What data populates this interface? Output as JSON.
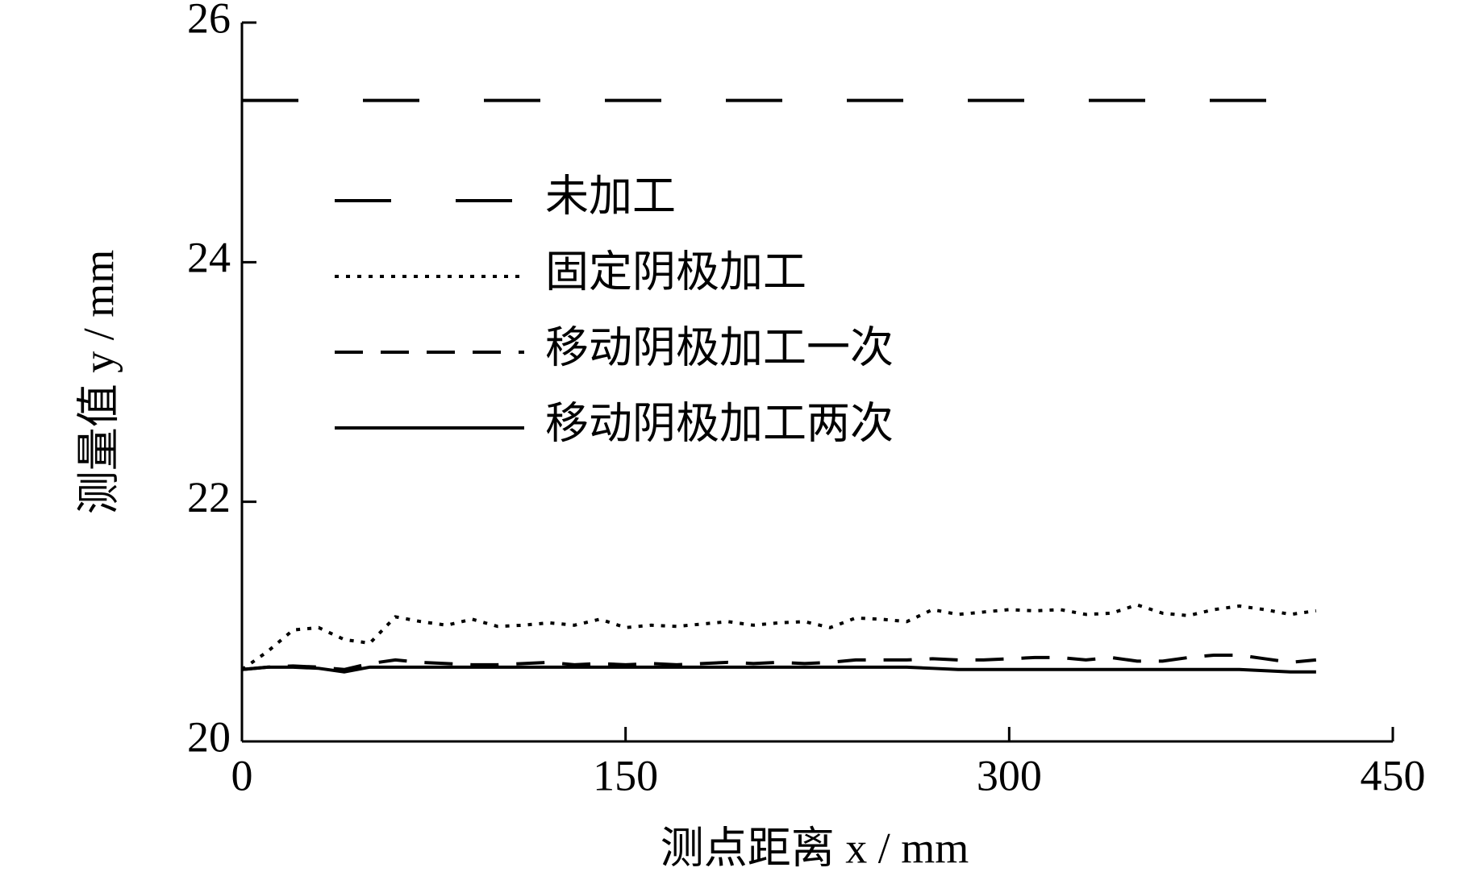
{
  "chart_data": {
    "type": "line",
    "xlabel": "测点距离 x / mm",
    "ylabel": "测量值 y / mm",
    "xlim": [
      0,
      450
    ],
    "xticks": [
      0,
      150,
      300,
      450
    ],
    "ylim": [
      20,
      26
    ],
    "yticks": [
      20,
      22,
      24,
      26
    ],
    "legend": "upper left",
    "grid": false,
    "series": [
      {
        "name": "未加工",
        "color": "#000000",
        "style": "long-dash",
        "x": [
          0,
          412
        ],
        "values": [
          25.35,
          25.35
        ]
      },
      {
        "name": "固定阴极加工",
        "color": "#000000",
        "style": "dotted",
        "x": [
          0,
          10,
          20,
          30,
          40,
          50,
          60,
          70,
          80,
          90,
          100,
          110,
          120,
          130,
          140,
          150,
          160,
          170,
          180,
          190,
          200,
          210,
          220,
          230,
          240,
          250,
          260,
          270,
          280,
          290,
          300,
          310,
          320,
          330,
          340,
          350,
          360,
          370,
          380,
          390,
          400,
          410,
          420
        ],
        "values": [
          20.6,
          20.75,
          20.93,
          20.95,
          20.85,
          20.82,
          21.04,
          21.0,
          20.97,
          21.02,
          20.96,
          20.97,
          20.99,
          20.97,
          21.02,
          20.95,
          20.97,
          20.96,
          20.98,
          21.0,
          20.97,
          20.99,
          21.0,
          20.95,
          21.03,
          21.02,
          21.0,
          21.1,
          21.06,
          21.08,
          21.1,
          21.09,
          21.1,
          21.06,
          21.07,
          21.14,
          21.07,
          21.05,
          21.1,
          21.13,
          21.1,
          21.06,
          21.09
        ]
      },
      {
        "name": "移动阴极加工一次",
        "color": "#000000",
        "style": "dash",
        "x": [
          0,
          10,
          20,
          30,
          40,
          50,
          60,
          70,
          80,
          90,
          100,
          110,
          120,
          130,
          140,
          150,
          160,
          170,
          180,
          190,
          200,
          210,
          220,
          230,
          240,
          250,
          260,
          270,
          280,
          290,
          300,
          310,
          320,
          330,
          340,
          350,
          360,
          370,
          380,
          390,
          400,
          410,
          420
        ],
        "values": [
          20.6,
          20.62,
          20.63,
          20.62,
          20.6,
          20.65,
          20.68,
          20.66,
          20.65,
          20.64,
          20.64,
          20.65,
          20.66,
          20.64,
          20.65,
          20.64,
          20.65,
          20.64,
          20.65,
          20.66,
          20.65,
          20.66,
          20.65,
          20.66,
          20.68,
          20.68,
          20.68,
          20.69,
          20.68,
          20.68,
          20.69,
          20.7,
          20.7,
          20.68,
          20.7,
          20.67,
          20.67,
          20.7,
          20.72,
          20.72,
          20.69,
          20.66,
          20.68
        ]
      },
      {
        "name": "移动阴极加工两次",
        "color": "#000000",
        "style": "solid",
        "x": [
          0,
          10,
          20,
          30,
          40,
          50,
          60,
          70,
          80,
          90,
          100,
          110,
          120,
          130,
          140,
          150,
          160,
          170,
          180,
          190,
          200,
          210,
          220,
          230,
          240,
          250,
          260,
          270,
          280,
          290,
          300,
          310,
          320,
          330,
          340,
          350,
          360,
          370,
          380,
          390,
          400,
          410,
          420
        ],
        "values": [
          20.6,
          20.62,
          20.62,
          20.61,
          20.58,
          20.62,
          20.62,
          20.62,
          20.62,
          20.62,
          20.62,
          20.62,
          20.62,
          20.62,
          20.62,
          20.62,
          20.62,
          20.62,
          20.62,
          20.62,
          20.62,
          20.62,
          20.62,
          20.62,
          20.62,
          20.62,
          20.62,
          20.61,
          20.6,
          20.6,
          20.6,
          20.6,
          20.6,
          20.6,
          20.6,
          20.6,
          20.6,
          20.6,
          20.6,
          20.6,
          20.59,
          20.58,
          20.58
        ]
      }
    ]
  }
}
